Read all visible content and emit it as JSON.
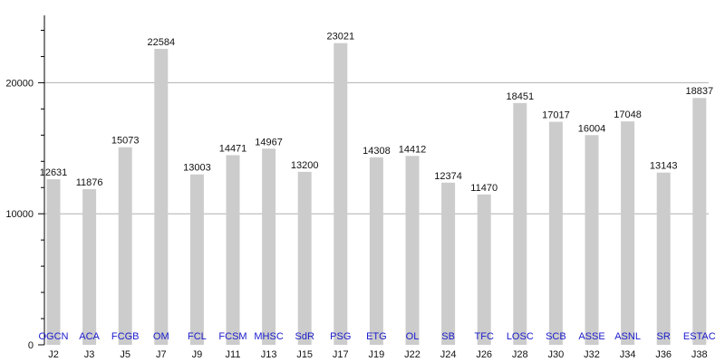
{
  "chart_data": {
    "type": "bar",
    "title": "",
    "xlabel": "",
    "ylabel": "",
    "ylim": [
      0,
      25000
    ],
    "yticks": [
      0,
      10000,
      20000
    ],
    "grid": true,
    "legend": "none",
    "categories": [
      "J2",
      "J3",
      "J5",
      "J7",
      "J9",
      "J11",
      "J13",
      "J15",
      "J17",
      "J19",
      "J22",
      "J24",
      "J26",
      "J28",
      "J30",
      "J32",
      "J34",
      "J36",
      "J38"
    ],
    "teams": [
      "OGCN",
      "ACA",
      "FCGB",
      "OM",
      "FCL",
      "FCSM",
      "MHSC",
      "SdR",
      "PSG",
      "ETG",
      "OL",
      "SB",
      "TFC",
      "LOSC",
      "SCB",
      "ASSE",
      "ASNL",
      "SR",
      "ESTAC"
    ],
    "values": [
      12631,
      11876,
      15073,
      22584,
      13003,
      14471,
      14967,
      13200,
      23021,
      14308,
      14412,
      12374,
      11470,
      18451,
      17017,
      16004,
      17048,
      13143,
      18837
    ],
    "colors": {
      "bar": "#cccccc",
      "grid": "#b0b0b0",
      "axis": "#000000",
      "team_label": "#1a1acc"
    }
  }
}
